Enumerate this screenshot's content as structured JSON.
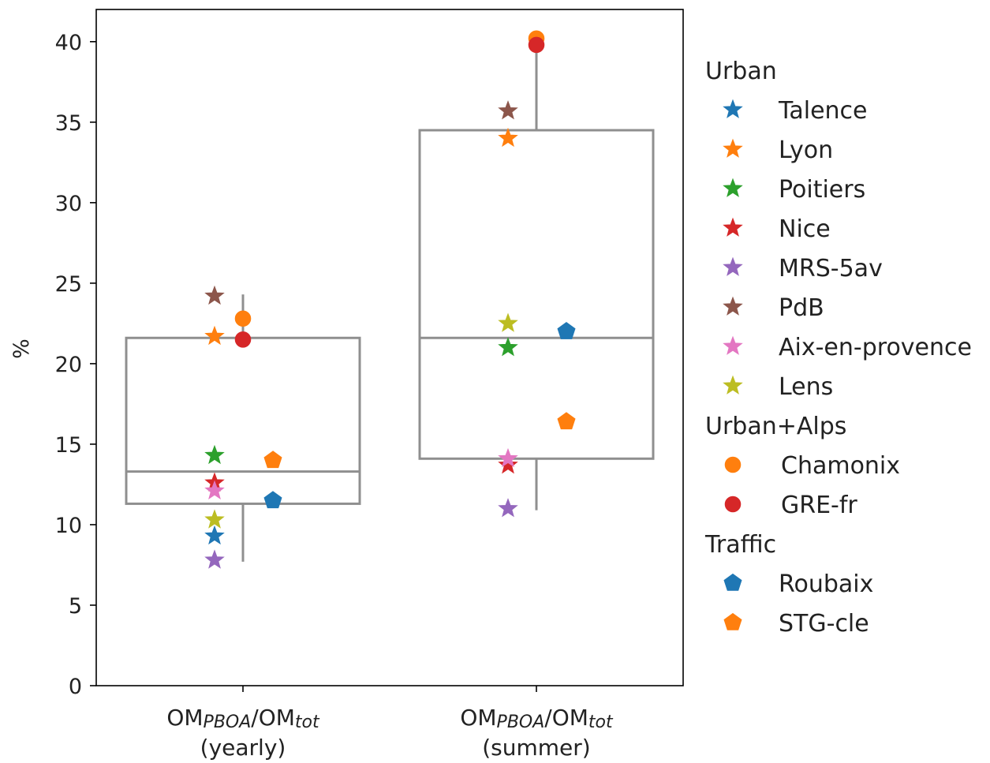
{
  "chart_data": {
    "type": "box",
    "ylabel": "%",
    "ylim": [
      0,
      42
    ],
    "yticks": [
      0,
      5,
      10,
      15,
      20,
      25,
      30,
      35,
      40
    ],
    "categories": [
      {
        "main": "OM",
        "sub1": "PBOA",
        "sep": "/OM",
        "sub2": "tot",
        "period": "(yearly)"
      },
      {
        "main": "OM",
        "sub1": "PBOA",
        "sep": "/OM",
        "sub2": "tot",
        "period": "(summer)"
      }
    ],
    "boxes": [
      {
        "q1": 11.3,
        "median": 13.3,
        "q3": 21.6,
        "whisker_low": 7.7,
        "whisker_high": 24.3
      },
      {
        "q1": 14.1,
        "median": 21.6,
        "q3": 34.5,
        "whisker_low": 10.9,
        "whisker_high": 40.3
      }
    ],
    "groups": [
      {
        "title": "Urban",
        "marker": "star",
        "series": [
          {
            "name": "Talence",
            "color": "#1f77b4",
            "values": [
              9.3,
              null
            ]
          },
          {
            "name": "Lyon",
            "color": "#ff7f0e",
            "values": [
              21.7,
              34.0
            ]
          },
          {
            "name": "Poitiers",
            "color": "#2ca02c",
            "values": [
              14.3,
              21.0
            ]
          },
          {
            "name": "Nice",
            "color": "#d62728",
            "values": [
              12.6,
              13.7
            ]
          },
          {
            "name": "MRS-5av",
            "color": "#9467bd",
            "values": [
              7.8,
              11.0
            ]
          },
          {
            "name": "PdB",
            "color": "#8c564b",
            "values": [
              24.2,
              35.7
            ]
          },
          {
            "name": "Aix-en-provence",
            "color": "#e377c2",
            "values": [
              12.1,
              14.1
            ]
          },
          {
            "name": "Lens",
            "color": "#bcbd22",
            "values": [
              10.3,
              22.5
            ]
          }
        ]
      },
      {
        "title": "Urban+Alps",
        "marker": "circle",
        "series": [
          {
            "name": "Chamonix",
            "color": "#ff7f0e",
            "values": [
              22.8,
              40.2
            ]
          },
          {
            "name": "GRE-fr",
            "color": "#d62728",
            "values": [
              21.5,
              39.8
            ]
          }
        ]
      },
      {
        "title": "Traffic",
        "marker": "pentagon",
        "series": [
          {
            "name": "Roubaix",
            "color": "#1f77b4",
            "values": [
              11.5,
              22.0
            ]
          },
          {
            "name": "STG-cle",
            "color": "#ff7f0e",
            "values": [
              14.0,
              16.4
            ]
          }
        ]
      }
    ]
  }
}
